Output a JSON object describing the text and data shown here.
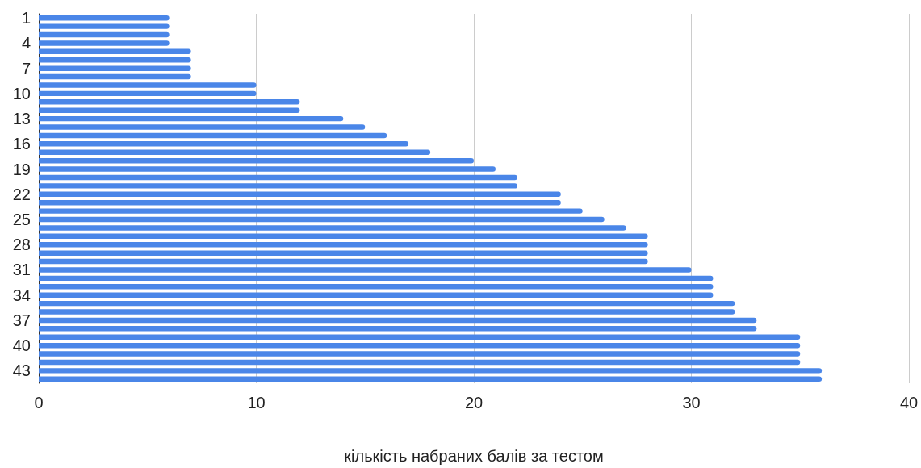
{
  "chart_data": {
    "type": "bar",
    "orientation": "horizontal",
    "xlabel": "кількість набраних балів за тестом",
    "categories": [
      "1",
      null,
      null,
      "4",
      null,
      null,
      "7",
      null,
      null,
      "10",
      null,
      null,
      "13",
      null,
      null,
      "16",
      null,
      null,
      "19",
      null,
      null,
      "22",
      null,
      null,
      "25",
      null,
      null,
      "28",
      null,
      null,
      "31",
      null,
      null,
      "34",
      null,
      null,
      "37",
      null,
      null,
      "40",
      null,
      null,
      "43",
      null
    ],
    "values": [
      6,
      6,
      6,
      6,
      7,
      7,
      7,
      7,
      10,
      10,
      12,
      12,
      14,
      15,
      16,
      17,
      18,
      20,
      21,
      22,
      22,
      24,
      24,
      25,
      26,
      27,
      28,
      28,
      28,
      28,
      30,
      31,
      31,
      31,
      32,
      32,
      33,
      33,
      35,
      35,
      35,
      35,
      36,
      36
    ],
    "color": "#4a86e8",
    "xlim": [
      0,
      40
    ],
    "xticks": [
      0,
      10,
      20,
      30,
      40
    ],
    "grid": "x"
  }
}
